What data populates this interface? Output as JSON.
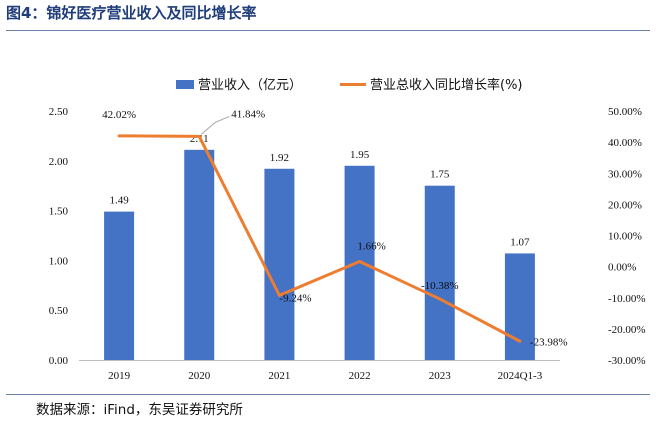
{
  "figure": {
    "title": "图4：锦好医疗营业收入及同比增长率",
    "source": "数据来源：iFind，东吴证券研究所"
  },
  "chart_data": {
    "type": "bar+line",
    "categories": [
      "2019",
      "2020",
      "2021",
      "2022",
      "2023",
      "2024Q1-3"
    ],
    "series": [
      {
        "name": "营业收入（亿元）",
        "type": "bar",
        "axis": "left",
        "color": "#4472C4",
        "values": [
          1.49,
          2.11,
          1.92,
          1.95,
          1.75,
          1.07
        ],
        "labels": [
          "1.49",
          "2.11",
          "1.92",
          "1.95",
          "1.75",
          "1.07"
        ]
      },
      {
        "name": "营业总收入同比增长率(%)",
        "type": "line",
        "axis": "right",
        "color": "#ED7D31",
        "values": [
          42.02,
          41.84,
          -9.24,
          1.66,
          -10.38,
          -23.98
        ],
        "labels": [
          "42.02%",
          "41.84%",
          "-9.24%",
          "1.66%",
          "-10.38%",
          "-23.98%"
        ]
      }
    ],
    "y_left": {
      "range": [
        0,
        2.5
      ],
      "ticks": [
        0,
        0.5,
        1.0,
        1.5,
        2.0,
        2.5
      ],
      "tick_labels": [
        "0.00",
        "0.50",
        "1.00",
        "1.50",
        "2.00",
        "2.50"
      ]
    },
    "y_right": {
      "range": [
        -30,
        50
      ],
      "ticks": [
        -30,
        -20,
        -10,
        0,
        10,
        20,
        30,
        40,
        50
      ],
      "tick_labels": [
        "-30.00%",
        "-20.00%",
        "-10.00%",
        "0.00%",
        "10.00%",
        "20.00%",
        "30.00%",
        "40.00%",
        "50.00%"
      ]
    },
    "legend_position": "top-center",
    "grid": false
  }
}
